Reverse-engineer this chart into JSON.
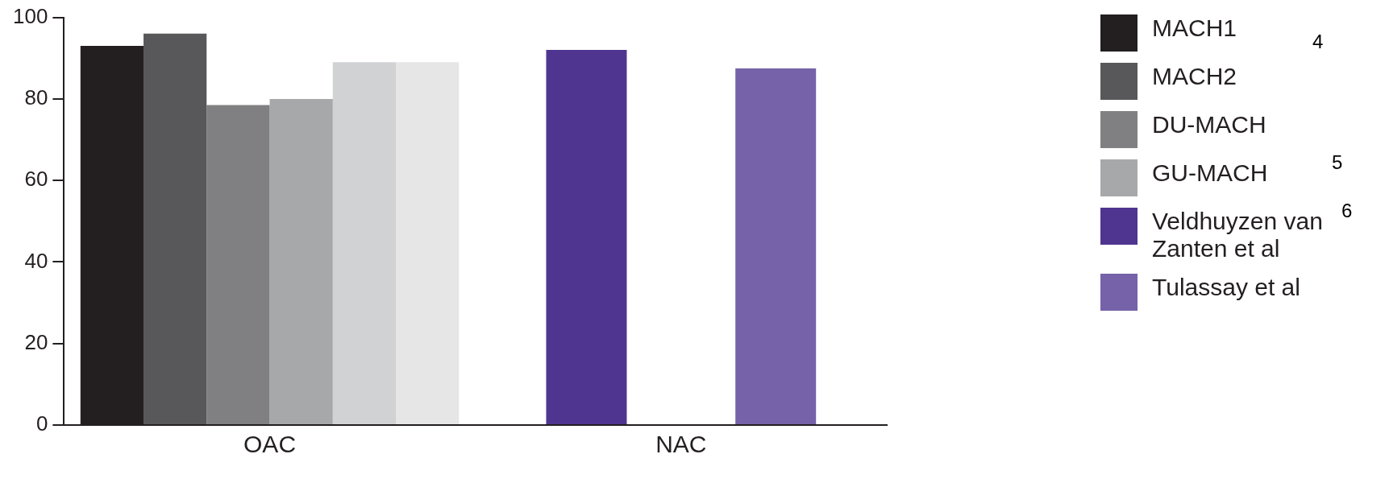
{
  "chart_data": {
    "type": "bar",
    "categories": [
      "OAC",
      "NAC"
    ],
    "series": [
      {
        "name": "MACH1",
        "color": "#231f20",
        "values": [
          93,
          null
        ]
      },
      {
        "name": "MACH2",
        "color": "#58585a",
        "values": [
          96,
          null
        ]
      },
      {
        "name": "DU-MACH",
        "color": "#808082",
        "values": [
          78.5,
          null
        ]
      },
      {
        "name": "GU-MACH",
        "color": "#a7a8aa",
        "values": [
          80,
          null
        ]
      },
      {
        "color": "#d1d2d4",
        "values": [
          89,
          null
        ]
      },
      {
        "color": "#e6e6e6",
        "values": [
          89,
          null
        ]
      },
      {
        "name": "Veldhuyzen van Zanten et al",
        "color": "#4f3590",
        "values": [
          null,
          92
        ]
      },
      {
        "name": "Tulassay et al",
        "color": "#7562a8",
        "values": [
          null,
          87.5
        ]
      }
    ],
    "ylim": [
      0,
      100
    ],
    "yticks": [
      0,
      20,
      40,
      60,
      80,
      100
    ],
    "grid": false,
    "legend": "right",
    "annotations": [
      "4",
      "5",
      "6"
    ]
  }
}
